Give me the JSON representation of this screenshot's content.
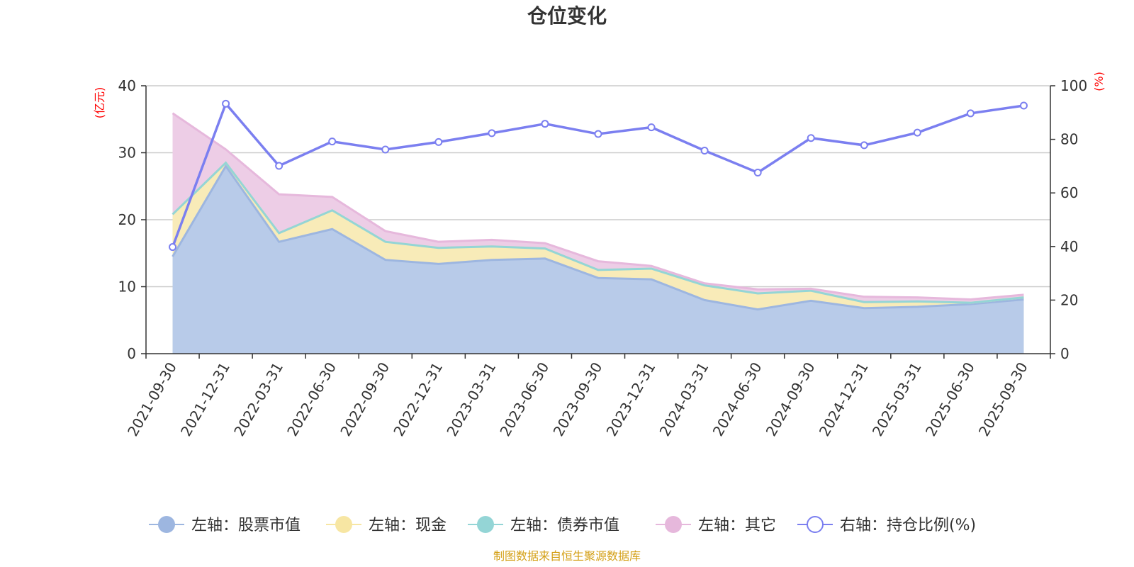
{
  "chart_data": {
    "type": "area",
    "title": "仓位变化",
    "left_axis": {
      "unit_label": "(亿元)",
      "ylim": [
        0,
        40
      ],
      "ticks": [
        "0",
        "10",
        "20",
        "30",
        "40"
      ]
    },
    "right_axis": {
      "unit_label": "(%)",
      "ylim": [
        0,
        100
      ],
      "ticks": [
        "0",
        "20",
        "40",
        "60",
        "80",
        "100"
      ]
    },
    "categories": [
      "2021-09-30",
      "2021-12-31",
      "2022-03-31",
      "2022-06-30",
      "2022-09-30",
      "2022-12-31",
      "2023-03-31",
      "2023-06-30",
      "2023-09-30",
      "2023-12-31",
      "2024-03-31",
      "2024-06-30",
      "2024-09-30",
      "2024-12-31",
      "2025-03-31",
      "2025-06-30",
      "2025-09-30"
    ],
    "series": [
      {
        "name": "左轴：股票市值",
        "axis": "left",
        "kind": "stacked-area",
        "color": "#9db6e0",
        "fill": "#b8cbe9",
        "values": [
          14.5,
          28.0,
          16.7,
          18.6,
          14.0,
          13.4,
          14.0,
          14.2,
          11.3,
          11.1,
          8.0,
          6.6,
          7.9,
          6.8,
          7.0,
          7.4,
          8.1
        ]
      },
      {
        "name": "左轴：现金",
        "axis": "left",
        "kind": "stacked-area",
        "color": "#f7e6a3",
        "fill": "#f8ebb8",
        "values": [
          6.3,
          0.5,
          1.3,
          2.8,
          2.7,
          2.4,
          2.0,
          1.5,
          1.2,
          1.6,
          2.2,
          2.4,
          1.5,
          0.9,
          0.8,
          0.2,
          0.3
        ]
      },
      {
        "name": "左轴：债券市值",
        "axis": "left",
        "kind": "stacked-area",
        "color": "#94d5d6",
        "fill": "#bfe6e6",
        "values": [
          0,
          0,
          0,
          0,
          0,
          0,
          0,
          0,
          0,
          0,
          0,
          0,
          0,
          0,
          0,
          0,
          0
        ]
      },
      {
        "name": "左轴：其它",
        "axis": "left",
        "kind": "stacked-area",
        "color": "#e6b8dc",
        "fill": "#edcde6",
        "values": [
          15.1,
          2.0,
          5.8,
          2.0,
          1.6,
          0.9,
          1.0,
          0.8,
          1.3,
          0.4,
          0.3,
          0.6,
          0.3,
          0.8,
          0.6,
          0.5,
          0.4
        ]
      },
      {
        "name": "右轴：持仓比例(%)",
        "axis": "right",
        "kind": "line",
        "color": "#7b7ff0",
        "values": [
          39.8,
          93.3,
          70.1,
          79.2,
          76.2,
          79.0,
          82.3,
          85.8,
          82.0,
          84.5,
          75.8,
          67.6,
          80.5,
          77.8,
          82.5,
          89.7,
          92.6
        ]
      }
    ],
    "legend": [
      {
        "label": "左轴：股票市值",
        "marker": "filled-circle",
        "color": "#9db6e0"
      },
      {
        "label": "左轴：现金",
        "marker": "filled-circle",
        "color": "#f7e6a3"
      },
      {
        "label": "左轴：债券市值",
        "marker": "filled-circle",
        "color": "#94d5d6"
      },
      {
        "label": "左轴：其它",
        "marker": "filled-circle",
        "color": "#e6b8dc"
      },
      {
        "label": "右轴：持仓比例(%)",
        "marker": "hollow-circle",
        "color": "#7b7ff0"
      }
    ],
    "legend_placement": "bottom",
    "grid": true
  },
  "footer": {
    "source": "制图数据来自恒生聚源数据库"
  },
  "colors": {
    "axis_unit": "#ff0000",
    "source_text": "#d4a017",
    "grid": "#cccccc",
    "axis_line": "#333333"
  }
}
